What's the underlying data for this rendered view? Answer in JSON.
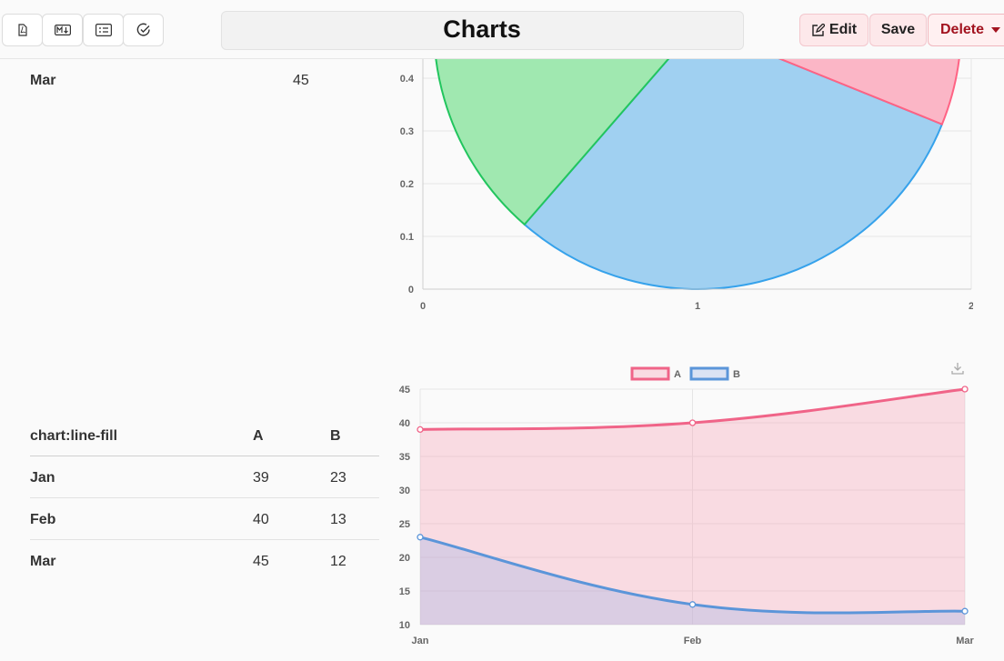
{
  "header": {
    "title": "Charts",
    "edit_label": "Edit",
    "save_label": "Save",
    "delete_label": "Delete",
    "toolbar_icons": [
      "pdf-icon",
      "markdown-icon",
      "list-icon",
      "check-circle-icon"
    ]
  },
  "tables": {
    "pie_table": {
      "rows": [
        {
          "label": "Mar",
          "value": "45"
        }
      ]
    },
    "line_fill_table": {
      "headers": [
        "chart:line-fill",
        "A",
        "B"
      ],
      "rows": [
        {
          "label": "Jan",
          "a": "39",
          "b": "23"
        },
        {
          "label": "Feb",
          "a": "40",
          "b": "13"
        },
        {
          "label": "Mar",
          "a": "45",
          "b": "12"
        }
      ]
    }
  },
  "chart_data": [
    {
      "type": "pie",
      "title": "",
      "x_ticks": [
        "0",
        "1",
        "2"
      ],
      "y_ticks": [
        "0",
        "0.1",
        "0.2",
        "0.3",
        "0.4"
      ],
      "slices": [
        {
          "color": "#36a2eb",
          "fill": "#a0d0f1"
        },
        {
          "color": "#22c55e",
          "fill": "#a0e8b0"
        },
        {
          "color": "#ff6384",
          "fill": "#fbb6c6"
        }
      ]
    },
    {
      "type": "area",
      "title": "",
      "categories": [
        "Jan",
        "Feb",
        "Mar"
      ],
      "ylim": [
        10,
        45
      ],
      "y_ticks": [
        "10",
        "15",
        "20",
        "25",
        "30",
        "35",
        "40",
        "45"
      ],
      "legend_position": "top",
      "series": [
        {
          "name": "A",
          "values": [
            39,
            40,
            45
          ],
          "color": "#f06488",
          "fill": "rgba(245,160,180,0.35)"
        },
        {
          "name": "B",
          "values": [
            23,
            13,
            12
          ],
          "color": "#5b95d9",
          "fill": "rgba(160,180,230,0.35)"
        }
      ]
    }
  ]
}
